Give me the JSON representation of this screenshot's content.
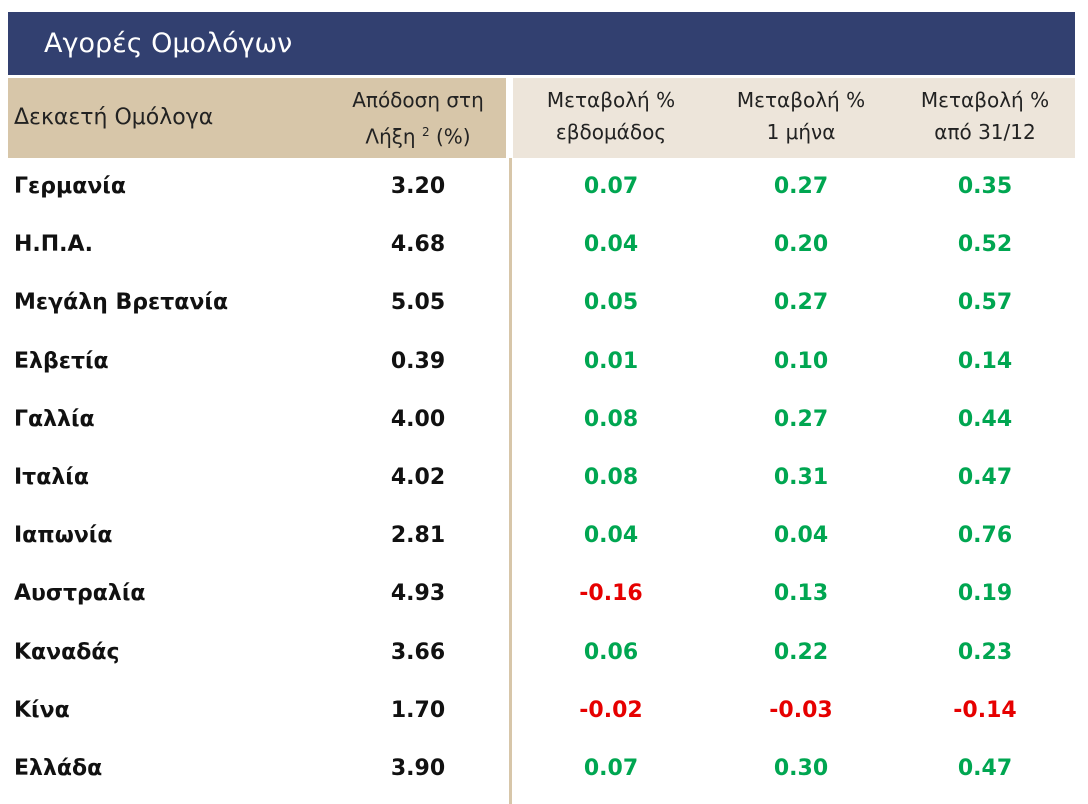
{
  "title": "Αγορές Ομολόγων",
  "header": {
    "label": "Δεκαετή Ομόλογα",
    "yield": {
      "line1": "Απόδοση στη",
      "line2": "Λήξη",
      "superscript": "2",
      "suffix": "(%)"
    },
    "changes": [
      [
        "Μεταβολή %",
        "εβδομάδος"
      ],
      [
        "Μεταβολή %",
        "1 μήνα"
      ],
      [
        "Μεταβολή %",
        "από 31/12"
      ]
    ]
  },
  "table": {
    "rows": [
      [
        "Γερμανία",
        "3.20",
        "0.07",
        "0.27",
        "0.35"
      ],
      [
        "Η.Π.Α.",
        "4.68",
        "0.04",
        "0.20",
        "0.52"
      ],
      [
        "Μεγάλη Βρετανία",
        "5.05",
        "0.05",
        "0.27",
        "0.57"
      ],
      [
        "Ελβετία",
        "0.39",
        "0.01",
        "0.10",
        "0.14"
      ],
      [
        "Γαλλία",
        "4.00",
        "0.08",
        "0.27",
        "0.44"
      ],
      [
        "Ιταλία",
        "4.02",
        "0.08",
        "0.31",
        "0.47"
      ],
      [
        "Ιαπωνία",
        "2.81",
        "0.04",
        "0.04",
        "0.76"
      ],
      [
        "Αυστραλία",
        "4.93",
        "-0.16",
        "0.13",
        "0.19"
      ],
      [
        "Καναδάς",
        "3.66",
        "0.06",
        "0.22",
        "0.23"
      ],
      [
        "Κίνα",
        "1.70",
        "-0.02",
        "-0.03",
        "-0.14"
      ],
      [
        "Ελλάδα",
        "3.90",
        "0.07",
        "0.30",
        "0.47"
      ]
    ]
  },
  "colors": {
    "positive": "#00a651",
    "negative": "#e60000"
  }
}
